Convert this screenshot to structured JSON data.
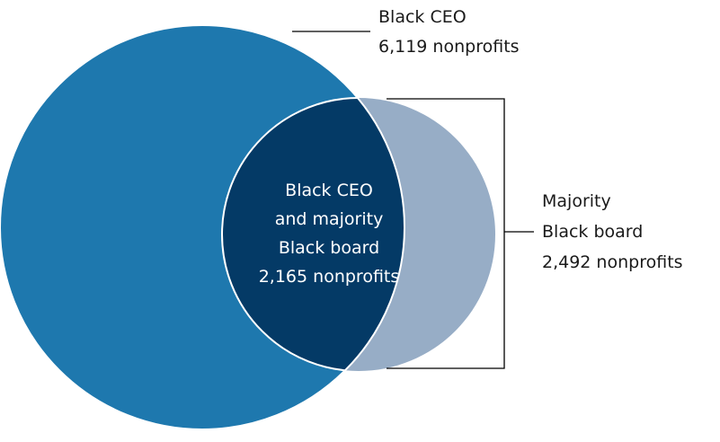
{
  "colors": {
    "background": "#ffffff",
    "black_ceo_fill": "#1e78ae",
    "majority_board_fill": "#97adc6",
    "overlap_fill": "#043a66",
    "outline": "#ffffff",
    "leader_line": "#000000",
    "outer_text": "#1a1a1a",
    "inner_text": "#ffffff"
  },
  "sets": {
    "black_ceo": {
      "label": "Black CEO",
      "count": "6,119 nonprofits"
    },
    "majority_board": {
      "label_line1": "Majority",
      "label_line2": "Black board",
      "count": "2,492 nonprofits"
    },
    "overlap": {
      "line1": "Black CEO",
      "line2": "and majority",
      "line3": "Black board",
      "count": "2,165 nonprofits"
    }
  }
}
